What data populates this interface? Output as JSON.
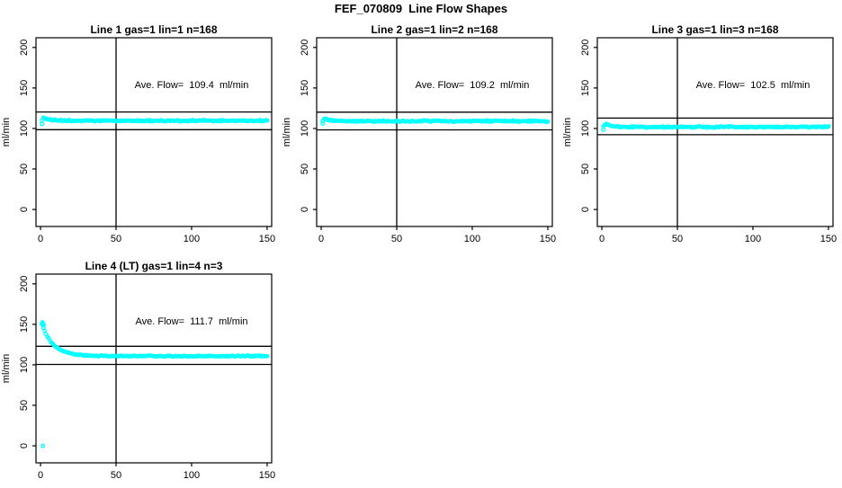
{
  "page_title": "FEF_070809  Line Flow Shapes",
  "colors": {
    "points": "#00FFFF",
    "lines": "#000000",
    "text": "#000000",
    "background": "#FFFFFF"
  },
  "axis": {
    "ylabel": "ml/min",
    "x_ticks": [
      0,
      50,
      100,
      150
    ],
    "y_ticks": [
      0,
      50,
      100,
      150,
      200
    ],
    "xlim": [
      -3,
      153
    ],
    "ylim": [
      -21,
      212
    ],
    "grid": false
  },
  "chart_data": [
    {
      "type": "scatter",
      "title": "Line 1 gas=1 lin=1 n=168",
      "line": 1,
      "gas": 1,
      "lin": 1,
      "n": 168,
      "annotation": "Ave. Flow=  109.4  ml/min",
      "ave_flow_ml_min": 109.4,
      "vline_x": 50,
      "hlines": [
        98.5,
        120.3
      ],
      "series": {
        "x_start": 1,
        "x_end": 150,
        "render_n": 168,
        "settle_y": 109.5,
        "peak": {
          "x": 2.5,
          "y": 113.5,
          "decay": 3.5
        },
        "jitter": 1.1,
        "extra_points": [
          [
            1,
            105.5
          ]
        ]
      }
    },
    {
      "type": "scatter",
      "title": "Line 2 gas=1 lin=2 n=168",
      "line": 2,
      "gas": 1,
      "lin": 2,
      "n": 168,
      "annotation": "Ave. Flow=  109.2  ml/min",
      "ave_flow_ml_min": 109.2,
      "vline_x": 50,
      "hlines": [
        98.3,
        120.1
      ],
      "series": {
        "x_start": 1,
        "x_end": 150,
        "render_n": 168,
        "settle_y": 109.0,
        "peak": {
          "x": 2.5,
          "y": 113.0,
          "decay": 3.5
        },
        "jitter": 1.1,
        "extra_points": [
          [
            1,
            106
          ]
        ]
      }
    },
    {
      "type": "scatter",
      "title": "Line 3 gas=1 lin=3 n=168",
      "line": 3,
      "gas": 1,
      "lin": 3,
      "n": 168,
      "annotation": "Ave. Flow=  102.5  ml/min",
      "ave_flow_ml_min": 102.5,
      "vline_x": 50,
      "hlines": [
        92.3,
        112.8
      ],
      "series": {
        "x_start": 1,
        "x_end": 150,
        "render_n": 168,
        "settle_y": 101.8,
        "peak": {
          "x": 2.5,
          "y": 106.0,
          "decay": 3.5
        },
        "jitter": 1.1,
        "extra_points": [
          [
            1,
            98.5
          ]
        ]
      }
    },
    {
      "type": "scatter",
      "title": "Line 4 (LT) gas=1 lin=4 n=3",
      "line": 4,
      "line_note": "LT",
      "gas": 1,
      "lin": 4,
      "n": 3,
      "annotation": "Ave. Flow=  111.7  ml/min",
      "ave_flow_ml_min": 111.7,
      "vline_x": 50,
      "hlines": [
        100.5,
        122.9
      ],
      "series": {
        "x_start": 1,
        "x_end": 150,
        "render_n": 168,
        "settle_y": 110.8,
        "peak": {
          "x": 1,
          "y": 150,
          "decay": 7.5
        },
        "jitter": 0.8,
        "extra_points": [
          [
            1,
            151
          ],
          [
            1.6,
            150.5
          ],
          [
            2.2,
            149
          ],
          [
            1.3,
            152.5
          ],
          [
            1.5,
            0
          ]
        ]
      }
    }
  ]
}
